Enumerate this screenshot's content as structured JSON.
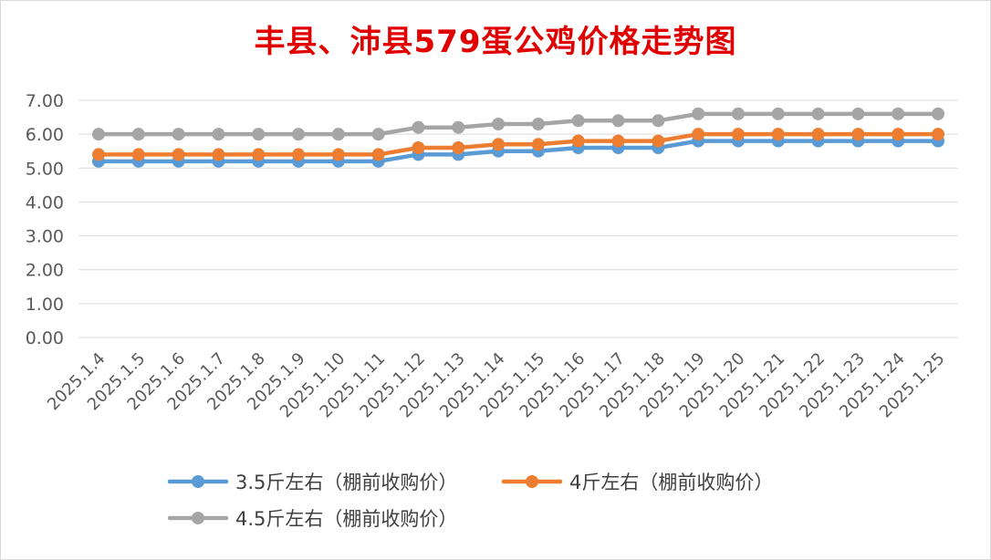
{
  "chart_data": {
    "type": "line",
    "title": "丰县、沛县579蛋公鸡价格走势图",
    "xlabel": "",
    "ylabel": "",
    "ylim": [
      0,
      7
    ],
    "yticks": [
      "0.00",
      "1.00",
      "2.00",
      "3.00",
      "4.00",
      "5.00",
      "6.00",
      "7.00"
    ],
    "grid": "horizontal",
    "legend_position": "bottom",
    "categories": [
      "2025.1.4",
      "2025.1.5",
      "2025.1.6",
      "2025.1.7",
      "2025.1.8",
      "2025.1.9",
      "2025.1.10",
      "2025.1.11",
      "2025.1.12",
      "2025.1.13",
      "2025.1.14",
      "2025.1.15",
      "2025.1.16",
      "2025.1.17",
      "2025.1.18",
      "2025.1.19",
      "2025.1.20",
      "2025.1.21",
      "2025.1.22",
      "2025.1.23",
      "2025.1.24",
      "2025.1.25"
    ],
    "series": [
      {
        "name": "3.5斤左右（棚前收购价）",
        "color": "#5b9bd5",
        "values": [
          5.2,
          5.2,
          5.2,
          5.2,
          5.2,
          5.2,
          5.2,
          5.2,
          5.4,
          5.4,
          5.5,
          5.5,
          5.6,
          5.6,
          5.6,
          5.8,
          5.8,
          5.8,
          5.8,
          5.8,
          5.8,
          5.8
        ]
      },
      {
        "name": "4斤左右（棚前收购价）",
        "color": "#ed7d31",
        "values": [
          5.4,
          5.4,
          5.4,
          5.4,
          5.4,
          5.4,
          5.4,
          5.4,
          5.6,
          5.6,
          5.7,
          5.7,
          5.8,
          5.8,
          5.8,
          6.0,
          6.0,
          6.0,
          6.0,
          6.0,
          6.0,
          6.0
        ]
      },
      {
        "name": "4.5斤左右（棚前收购价）",
        "color": "#a5a5a5",
        "values": [
          6.0,
          6.0,
          6.0,
          6.0,
          6.0,
          6.0,
          6.0,
          6.0,
          6.2,
          6.2,
          6.3,
          6.3,
          6.4,
          6.4,
          6.4,
          6.6,
          6.6,
          6.6,
          6.6,
          6.6,
          6.6,
          6.6
        ]
      }
    ]
  }
}
